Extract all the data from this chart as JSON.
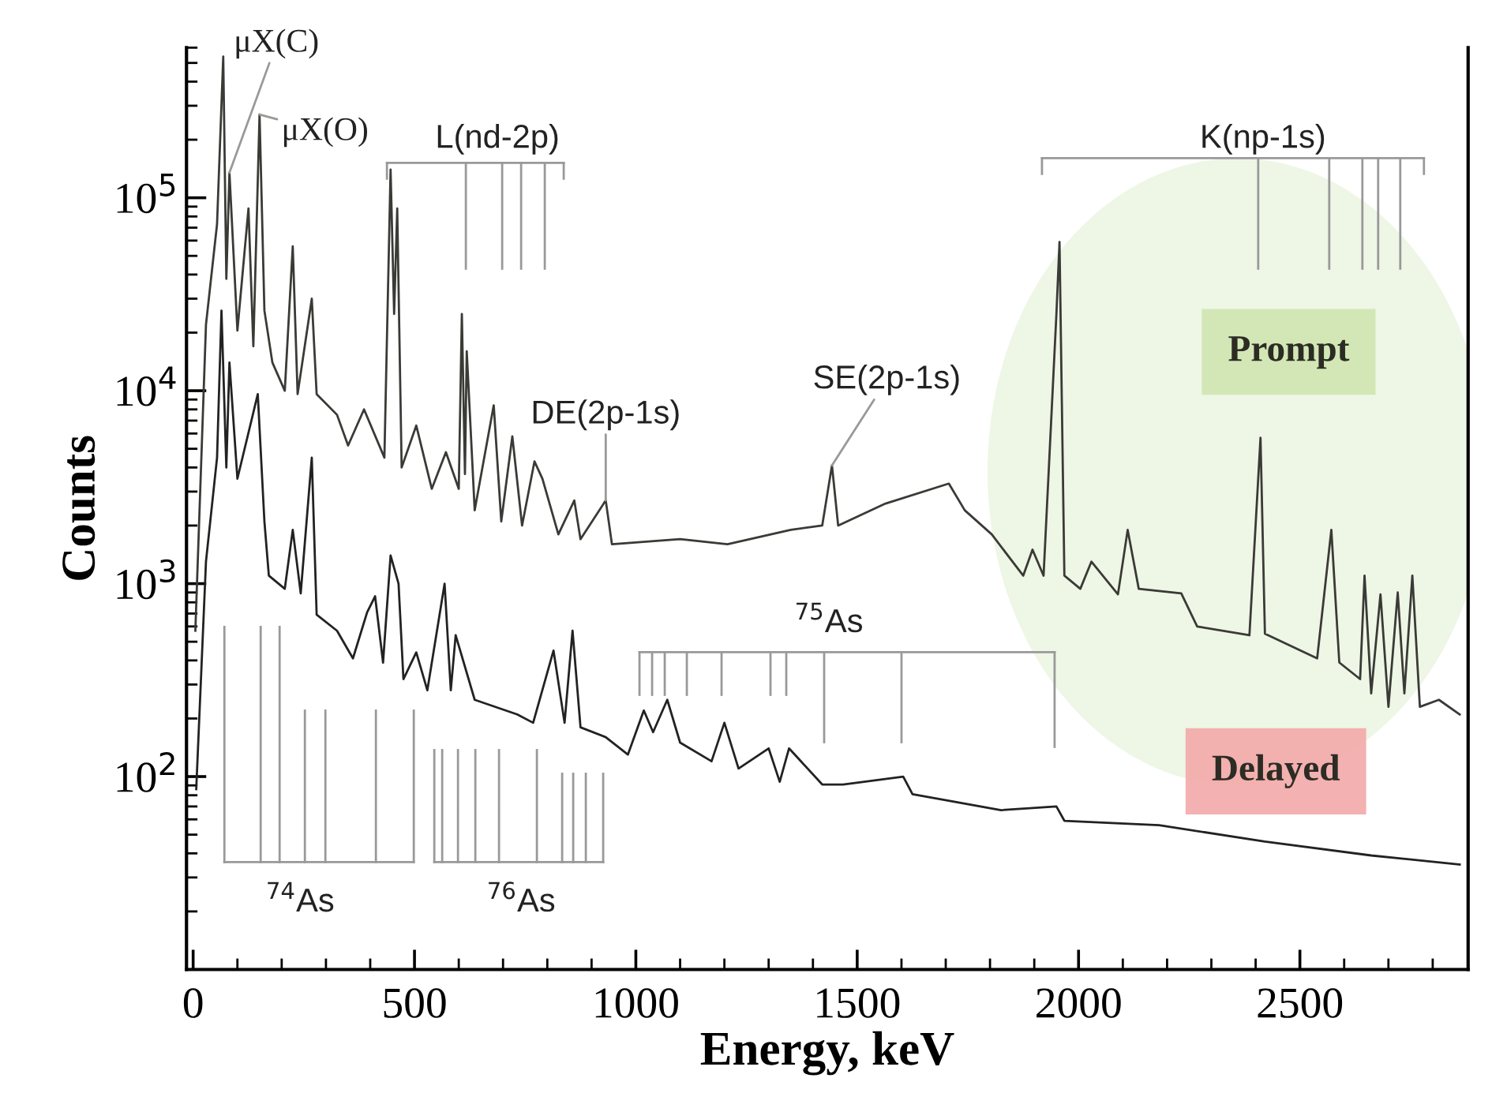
{
  "chart_data": {
    "type": "line",
    "xlabel": "Energy, keV",
    "ylabel": "Counts",
    "log": "y",
    "grid": false,
    "legend": false,
    "marker": "none",
    "line_style": "solid",
    "xlim": [
      -15,
      2880
    ],
    "ylim": [
      10,
      600000
    ],
    "xticks": [
      0,
      {
        "value": 100,
        "label": null
      },
      {
        "value": 200,
        "label": null
      },
      {
        "value": 300,
        "label": null
      },
      {
        "value": 400,
        "label": null
      },
      500,
      {
        "value": 600,
        "label": null
      },
      {
        "value": 700,
        "label": null
      },
      {
        "value": 800,
        "label": null
      },
      {
        "value": 900,
        "label": null
      },
      1000,
      {
        "value": 1100,
        "label": null
      },
      {
        "value": 1200,
        "label": null
      },
      {
        "value": 1300,
        "label": null
      },
      {
        "value": 1400,
        "label": null
      },
      1500,
      {
        "value": 1600,
        "label": null
      },
      {
        "value": 1700,
        "label": null
      },
      {
        "value": 1800,
        "label": null
      },
      {
        "value": 1900,
        "label": null
      },
      2000,
      {
        "value": 2100,
        "label": null
      },
      {
        "value": 2200,
        "label": null
      },
      {
        "value": 2300,
        "label": null
      },
      {
        "value": 2400,
        "label": null
      },
      2500,
      {
        "value": 2600,
        "label": null
      },
      {
        "value": 2700,
        "label": null
      },
      {
        "value": 2800,
        "label": null
      }
    ],
    "yticks": [
      {
        "value": 100,
        "label": "10$^{2}$"
      },
      {
        "value": 1000,
        "label": "10$^{3}$"
      },
      {
        "value": 10000,
        "label": "10$^{4}$"
      },
      {
        "value": 100000,
        "label": "10$^{5}$"
      }
    ],
    "series": [
      {
        "name": "Prompt",
        "color": "#3a3a36",
        "x": [
          5,
          29,
          54,
          68,
          75,
          82,
          100,
          125,
          136,
          150,
          161,
          179,
          207,
          225,
          236,
          268,
          279,
          325,
          350,
          386,
          432,
          446,
          454,
          461,
          471,
          504,
          539,
          571,
          600,
          607,
          614,
          618,
          636,
          679,
          696,
          721,
          743,
          771,
          789,
          825,
          861,
          875,
          932,
          946,
          1100,
          1207,
          1350,
          1421,
          1443,
          1457,
          1564,
          1707,
          1743,
          1804,
          1875,
          1896,
          1921,
          1950,
          1957,
          1968,
          2004,
          2029,
          2089,
          2111,
          2136,
          2232,
          2268,
          2386,
          2411,
          2421,
          2539,
          2571,
          2589,
          2636,
          2646,
          2661,
          2682,
          2700,
          2721,
          2736,
          2754,
          2771,
          2814,
          2861
        ],
        "values": [
          570,
          22000,
          73000,
          540000,
          38000,
          135000,
          20500,
          88000,
          17000,
          270000,
          26000,
          14000,
          10000,
          56000,
          9600,
          30000,
          9600,
          7500,
          5200,
          8000,
          4500,
          140000,
          25000,
          88000,
          4000,
          6600,
          3100,
          4800,
          3100,
          25000,
          3700,
          16000,
          2400,
          8400,
          2100,
          5800,
          2000,
          4300,
          3500,
          1800,
          2700,
          1700,
          2700,
          1600,
          1700,
          1600,
          1900,
          2000,
          4100,
          2000,
          2600,
          3300,
          2400,
          1800,
          1100,
          1500,
          1100,
          25000,
          59000,
          1100,
          940,
          1300,
          880,
          1900,
          940,
          890,
          600,
          540,
          5700,
          550,
          410,
          1900,
          390,
          320,
          1100,
          270,
          880,
          230,
          900,
          270,
          1100,
          230,
          250,
          210
        ]
      },
      {
        "name": "Delayed",
        "color": "#222222",
        "x": [
          7,
          29,
          54,
          64,
          75,
          82,
          100,
          146,
          161,
          171,
          207,
          225,
          243,
          268,
          279,
          325,
          361,
          393,
          411,
          429,
          446,
          464,
          475,
          504,
          529,
          568,
          582,
          593,
          636,
          732,
          768,
          814,
          839,
          857,
          875,
          932,
          982,
          1018,
          1039,
          1071,
          1100,
          1171,
          1200,
          1232,
          1300,
          1325,
          1346,
          1421,
          1468,
          1604,
          1625,
          1825,
          1950,
          1968,
          2182,
          2421,
          2661,
          2861
        ],
        "values": [
          86,
          1300,
          4500,
          26000,
          4000,
          14000,
          3500,
          9600,
          2100,
          1100,
          940,
          1900,
          890,
          4500,
          690,
          570,
          410,
          710,
          860,
          390,
          1400,
          1000,
          320,
          440,
          280,
          1000,
          280,
          540,
          250,
          210,
          190,
          450,
          190,
          570,
          180,
          160,
          130,
          220,
          170,
          250,
          150,
          120,
          190,
          110,
          140,
          94,
          140,
          91,
          91,
          100,
          81,
          67,
          70,
          59,
          56,
          46,
          39,
          35
        ]
      }
    ],
    "annotations": [
      {
        "text": "μX(C)",
        "x": 82,
        "y": 135000
      },
      {
        "text": "μX(O)",
        "x": 150,
        "y": 270000
      },
      "L(nd-2p)",
      {
        "text": "DE(2p-1s)",
        "x": 932,
        "y": 2700
      },
      {
        "text": "SE(2p-1s)",
        "x": 1443,
        "y": 4100
      },
      "K(np-1s)",
      "$^{75}$As",
      "$^{74}$As",
      "$^{76}$As"
    ]
  }
}
